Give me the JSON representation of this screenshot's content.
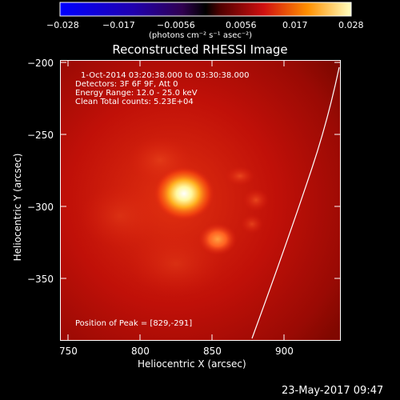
{
  "colorbar": {
    "ticks": [
      "−0.028",
      "−0.017",
      "−0.0056",
      "0.0056",
      "0.017",
      "0.028"
    ],
    "units": "(photons cm⁻² s⁻¹ asec⁻²)"
  },
  "title": "Reconstructed RHESSI Image",
  "info": {
    "line1": "1-Oct-2014 03:20:38.000 to 03:30:38.000",
    "line2": "Detectors: 3F 6F 9F, Att 0",
    "line3": "Energy Range: 12.0 - 25.0 keV",
    "line4": "Clean    Total counts: 5.23E+04"
  },
  "peak": "Position of Peak = [829,-291]",
  "xaxis": {
    "label": "Heliocentric X (arcsec)",
    "ticks": [
      "750",
      "800",
      "850",
      "900"
    ]
  },
  "yaxis": {
    "label": "Heliocentric Y (arcsec)",
    "ticks": [
      "−200",
      "−250",
      "−300",
      "−350"
    ]
  },
  "timestamp": "23-May-2017 09:47",
  "colors": {
    "background": "#000000",
    "limb": "#ffffff"
  }
}
